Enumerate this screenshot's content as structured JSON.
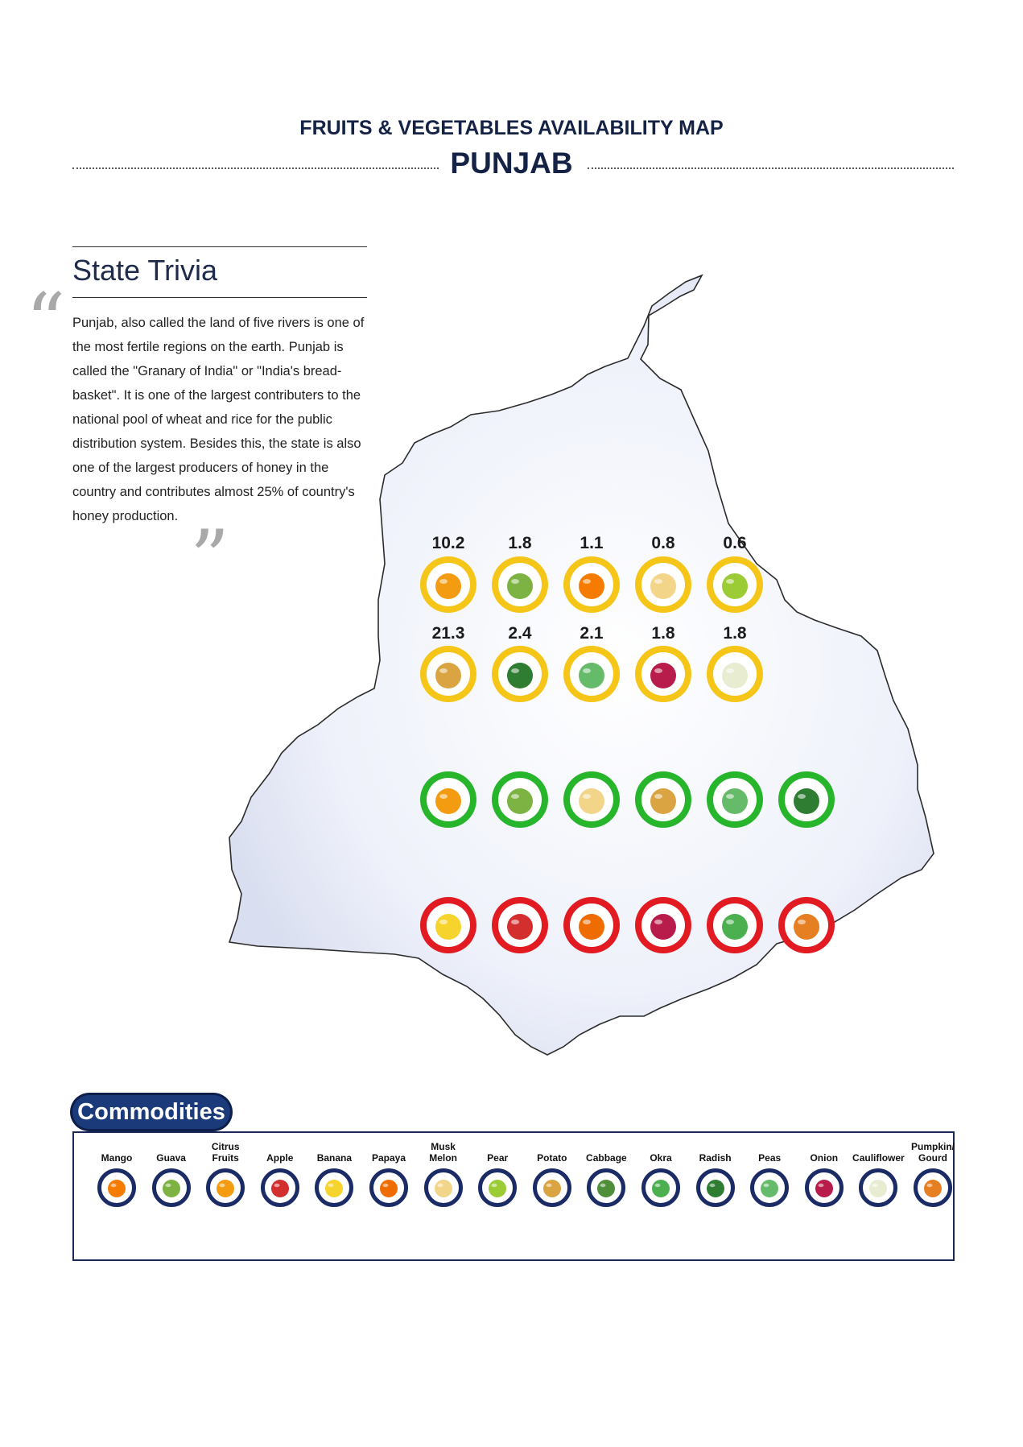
{
  "header": {
    "title": "FRUITS & VEGETABLES AVAILABILITY MAP",
    "state": "PUNJAB"
  },
  "trivia": {
    "heading": "State Trivia",
    "text": "Punjab, also called the land of five rivers is one of the most fertile regions on the earth. Punjab is called the \"Granary of India\" or \"India's bread-basket\". It is one of the largest contributers to the national pool of wheat and rice for the public distribution system. Besides this, the state is also one of the largest producers of honey in the country and contributes almost 25% of country's honey production."
  },
  "map_rows": {
    "yellow_row1": [
      {
        "commodity": "Citrus Fruits",
        "value": "10.2",
        "color": "#f39c12"
      },
      {
        "commodity": "Guava",
        "value": "1.8",
        "color": "#7cb342"
      },
      {
        "commodity": "Mango",
        "value": "1.1",
        "color": "#f57c00"
      },
      {
        "commodity": "Musk Melon",
        "value": "0.8",
        "color": "#f3d58a"
      },
      {
        "commodity": "Pear",
        "value": "0.6",
        "color": "#9ccc35"
      }
    ],
    "yellow_row2": [
      {
        "commodity": "Potato",
        "value": "21.3",
        "color": "#d9a441"
      },
      {
        "commodity": "Radish",
        "value": "2.4",
        "color": "#2e7d32"
      },
      {
        "commodity": "Peas",
        "value": "2.1",
        "color": "#66bb6a"
      },
      {
        "commodity": "Onion",
        "value": "1.8",
        "color": "#b71c4a"
      },
      {
        "commodity": "Cauliflower",
        "value": "1.8",
        "color": "#e8edd2"
      }
    ],
    "green_row": [
      {
        "commodity": "Citrus Fruits",
        "color": "#f39c12"
      },
      {
        "commodity": "Guava",
        "color": "#7cb342"
      },
      {
        "commodity": "Musk Melon",
        "color": "#f3d58a"
      },
      {
        "commodity": "Potato",
        "color": "#d9a441"
      },
      {
        "commodity": "Peas",
        "color": "#66bb6a"
      },
      {
        "commodity": "Radish",
        "color": "#2e7d32"
      }
    ],
    "red_row": [
      {
        "commodity": "Banana",
        "color": "#f6d32d"
      },
      {
        "commodity": "Apple",
        "color": "#d32f2f"
      },
      {
        "commodity": "Papaya",
        "color": "#ef6c00"
      },
      {
        "commodity": "Onion",
        "color": "#b71c4a"
      },
      {
        "commodity": "Okra",
        "color": "#4caf50"
      },
      {
        "commodity": "Pumpkin/ Gourd",
        "color": "#e67e22"
      }
    ],
    "ring_colors": {
      "yellow": "#f5c518",
      "green": "#27b52c",
      "red": "#e21b23"
    }
  },
  "commodities": {
    "title": "Commodities",
    "items": [
      {
        "label": "Mango",
        "color": "#f57c00"
      },
      {
        "label": "Guava",
        "color": "#7cb342"
      },
      {
        "label": "Citrus Fruits",
        "color": "#f39c12"
      },
      {
        "label": "Apple",
        "color": "#d32f2f"
      },
      {
        "label": "Banana",
        "color": "#f6d32d"
      },
      {
        "label": "Papaya",
        "color": "#ef6c00"
      },
      {
        "label": "Musk Melon",
        "color": "#f3d58a"
      },
      {
        "label": "Pear",
        "color": "#9ccc35"
      },
      {
        "label": "Potato",
        "color": "#d9a441"
      },
      {
        "label": "Cabbage",
        "color": "#4f8f3a"
      },
      {
        "label": "Okra",
        "color": "#4caf50"
      },
      {
        "label": "Radish",
        "color": "#2e7d32"
      },
      {
        "label": "Peas",
        "color": "#66bb6a"
      },
      {
        "label": "Onion",
        "color": "#b71c4a"
      },
      {
        "label": "Cauliflower",
        "color": "#e8edd2"
      },
      {
        "label": "Pumpkin/ Gourd",
        "color": "#e67e22"
      }
    ]
  }
}
